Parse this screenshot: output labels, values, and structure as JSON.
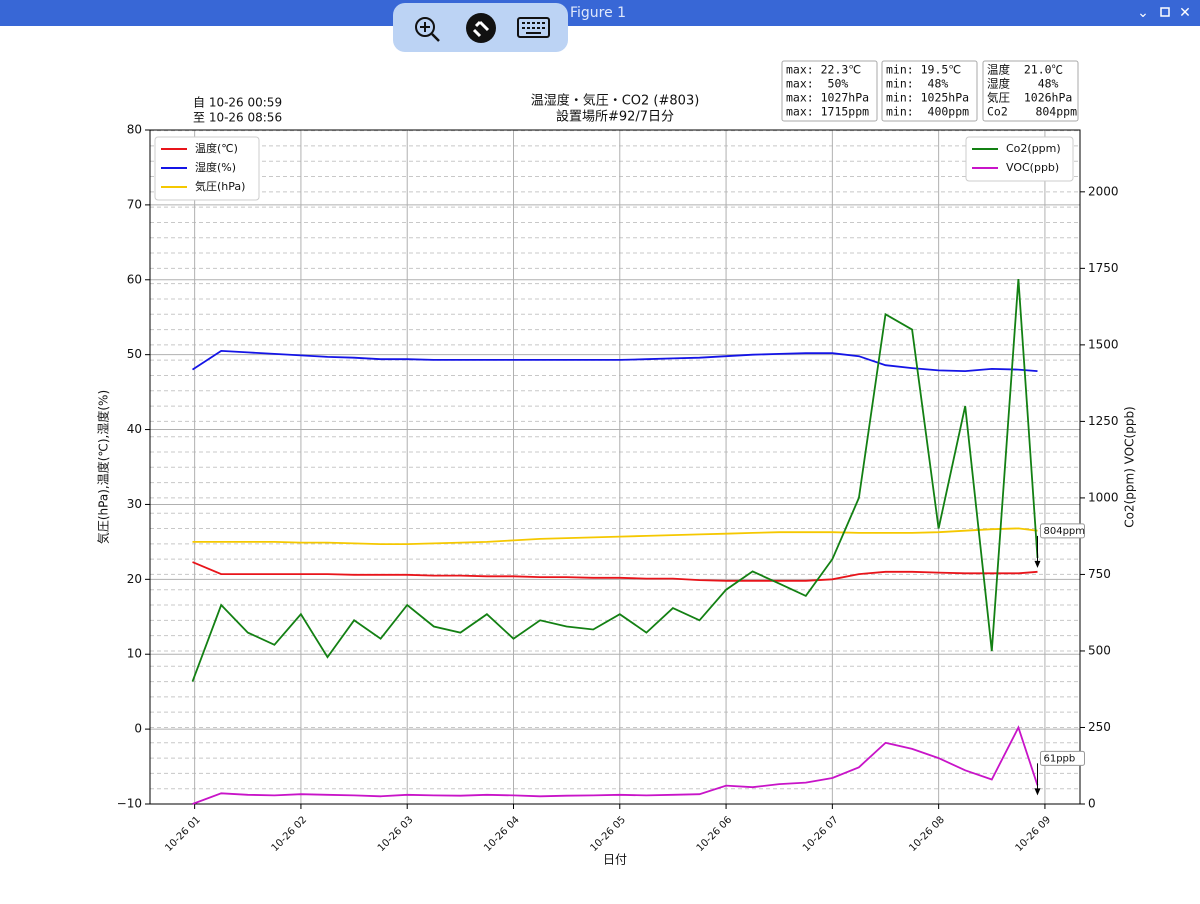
{
  "window": {
    "title": "Figure 1"
  },
  "stats": [
    [
      "max: 22.3℃",
      "max:  50%",
      "max: 1027hPa",
      "max: 1715ppm"
    ],
    [
      "min: 19.5℃",
      "min:  48%",
      "min: 1025hPa",
      "min:  400ppm"
    ],
    [
      "温度  21.0℃",
      "湿度    48%",
      "気圧  1026hPa",
      "Co2    804ppm"
    ]
  ],
  "chart_data": {
    "type": "line",
    "title": "温湿度・気圧・CO2 (#803)",
    "subtitle": "設置場所#92/7日分",
    "range_from": "自 10-26 00:59",
    "range_to": "至 10-26 08:56",
    "xlabel": "日付",
    "ylabel": "気圧(hPa),温度(℃),湿度(%)",
    "y2label": "Co2(ppm) VOC(ppb)",
    "x": [
      0.98,
      1.25,
      1.5,
      1.75,
      2,
      2.25,
      2.5,
      2.75,
      3,
      3.25,
      3.5,
      3.75,
      4,
      4.25,
      4.5,
      4.75,
      5,
      5.25,
      5.5,
      5.75,
      6,
      6.25,
      6.5,
      6.75,
      7,
      7.25,
      7.5,
      7.75,
      8,
      8.25,
      8.5,
      8.75,
      8.93
    ],
    "xlim": [
      0.58,
      9.33
    ],
    "xticks": [
      {
        "value": 1,
        "label": "10-26 01"
      },
      {
        "value": 2,
        "label": "10-26 02"
      },
      {
        "value": 3,
        "label": "10-26 03"
      },
      {
        "value": 4,
        "label": "10-26 04"
      },
      {
        "value": 5,
        "label": "10-26 05"
      },
      {
        "value": 6,
        "label": "10-26 06"
      },
      {
        "value": 7,
        "label": "10-26 07"
      },
      {
        "value": 8,
        "label": "10-26 08"
      },
      {
        "value": 9,
        "label": "10-26 09"
      }
    ],
    "ylim": [
      -10,
      80
    ],
    "yticks": [
      {
        "value": -10,
        "label": "−10"
      },
      0,
      10,
      20,
      30,
      40,
      50,
      60,
      70,
      80
    ],
    "y2lim": [
      0,
      2202
    ],
    "y2ticks": [
      0,
      250,
      500,
      750,
      1000,
      1250,
      1500,
      1750,
      2000
    ],
    "grid": true,
    "legend": "upper left",
    "legend2": "upper right",
    "series": [
      {
        "name": "温度(℃)",
        "color": "#e8141a",
        "values": [
          22.3,
          20.7,
          20.7,
          20.7,
          20.7,
          20.7,
          20.6,
          20.6,
          20.6,
          20.5,
          20.5,
          20.4,
          20.4,
          20.3,
          20.3,
          20.2,
          20.2,
          20.1,
          20.1,
          19.9,
          19.8,
          19.8,
          19.8,
          19.8,
          20.0,
          20.7,
          21.0,
          21.0,
          20.9,
          20.8,
          20.8,
          20.8,
          21.0
        ]
      },
      {
        "name": "湿度(%)",
        "color": "#1414e6",
        "values": [
          48.0,
          50.5,
          50.3,
          50.1,
          49.9,
          49.7,
          49.6,
          49.4,
          49.4,
          49.3,
          49.3,
          49.3,
          49.3,
          49.3,
          49.3,
          49.3,
          49.3,
          49.4,
          49.5,
          49.6,
          49.8,
          50.0,
          50.1,
          50.2,
          50.2,
          49.8,
          48.6,
          48.2,
          47.9,
          47.8,
          48.1,
          48.0,
          47.8
        ]
      },
      {
        "name": "気圧(hPa)",
        "color": "#f5c800",
        "values": [
          25.0,
          25.0,
          25.0,
          25.0,
          24.9,
          24.9,
          24.8,
          24.7,
          24.7,
          24.8,
          24.9,
          25.0,
          25.2,
          25.4,
          25.5,
          25.6,
          25.7,
          25.8,
          25.9,
          26.0,
          26.1,
          26.2,
          26.3,
          26.3,
          26.3,
          26.2,
          26.2,
          26.2,
          26.3,
          26.5,
          26.7,
          26.8,
          26.5
        ]
      },
      {
        "name": "Co2(ppm)",
        "color": "#138013",
        "axis": "y2",
        "values": [
          400,
          650,
          560,
          520,
          620,
          480,
          600,
          540,
          650,
          580,
          560,
          620,
          540,
          600,
          580,
          570,
          620,
          560,
          640,
          600,
          700,
          760,
          720,
          680,
          800,
          1000,
          1600,
          1550,
          900,
          1300,
          500,
          1715,
          804
        ]
      },
      {
        "name": "VOC(ppb)",
        "color": "#c814c8",
        "axis": "y2",
        "values": [
          0,
          35,
          30,
          28,
          32,
          30,
          28,
          25,
          30,
          28,
          27,
          30,
          28,
          25,
          27,
          28,
          30,
          28,
          30,
          32,
          60,
          55,
          65,
          70,
          85,
          120,
          200,
          180,
          150,
          110,
          80,
          250,
          61
        ]
      }
    ],
    "annotations": [
      {
        "text": "804ppm",
        "series": 3
      },
      {
        "text": "61ppb",
        "series": 4
      }
    ]
  }
}
